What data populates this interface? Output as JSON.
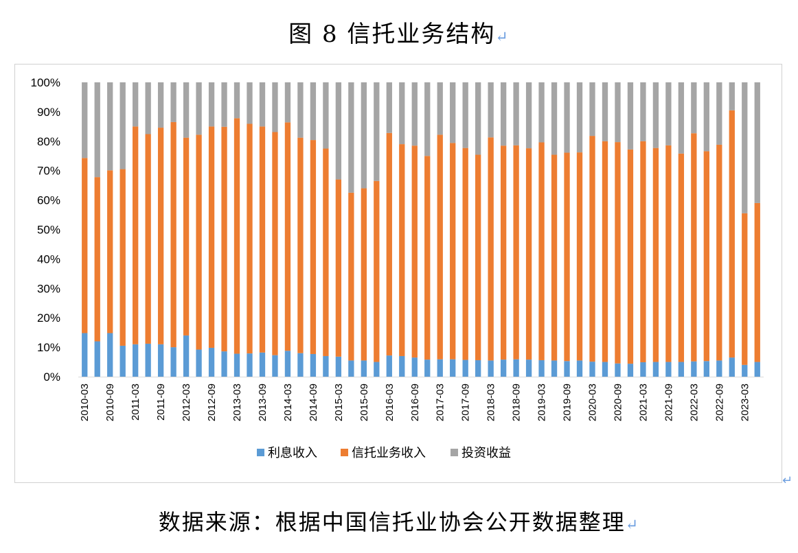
{
  "figure": {
    "title": "图 8  信托业务结构",
    "title_mark": "↵",
    "source": "数据来源：根据中国信托业协会公开数据整理",
    "source_mark": "↵",
    "para_mark": "↵"
  },
  "chart_data": {
    "type": "bar",
    "stacked": true,
    "percent": true,
    "ylim": [
      0,
      100
    ],
    "ytick_labels": [
      "0%",
      "10%",
      "20%",
      "30%",
      "40%",
      "50%",
      "60%",
      "70%",
      "80%",
      "90%",
      "100%"
    ],
    "xtick_labels": [
      "2010-03",
      "2010-09",
      "2011-03",
      "2011-09",
      "2012-03",
      "2012-09",
      "2013-03",
      "2013-09",
      "2014-03",
      "2014-09",
      "2015-03",
      "2015-09",
      "2016-03",
      "2016-09",
      "2017-03",
      "2017-09",
      "2018-03",
      "2018-09",
      "2019-03",
      "2019-09",
      "2020-03",
      "2020-09",
      "2021-03",
      "2021-09",
      "2022-03",
      "2022-09",
      "2023-03"
    ],
    "legend_position": "bottom",
    "grid": false,
    "series": [
      {
        "name": "利息收入",
        "color": "#5b9bd5",
        "values": [
          14.8,
          12.0,
          14.8,
          10.5,
          11.0,
          11.2,
          11.0,
          10.0,
          14.0,
          9.2,
          9.8,
          8.6,
          7.8,
          7.9,
          8.2,
          7.3,
          8.8,
          8.0,
          7.7,
          7.0,
          6.8,
          5.5,
          5.5,
          5.0,
          7.2,
          7.0,
          6.5,
          5.8,
          5.9,
          5.9,
          5.7,
          5.6,
          5.5,
          5.8,
          5.9,
          5.8,
          5.6,
          5.5,
          5.3,
          5.5,
          5.1,
          5.0,
          4.5,
          4.4,
          4.9,
          5.0,
          5.0,
          5.0,
          5.2,
          5.3,
          5.5,
          6.5,
          4.0,
          5.0
        ]
      },
      {
        "name": "信托业务收入",
        "color": "#ed7d31",
        "values": [
          59.5,
          55.8,
          55.3,
          60.0,
          74.0,
          71.2,
          73.6,
          76.5,
          67.2,
          73.0,
          75.2,
          76.3,
          80.0,
          78.0,
          76.8,
          75.8,
          77.6,
          73.2,
          72.7,
          70.5,
          60.2,
          57.0,
          58.5,
          61.5,
          75.6,
          72.0,
          72.0,
          69.2,
          76.3,
          73.5,
          72.0,
          69.8,
          75.8,
          72.7,
          72.7,
          71.8,
          74.0,
          69.9,
          70.8,
          70.7,
          76.7,
          75.0,
          75.2,
          72.8,
          75.1,
          72.7,
          73.6,
          70.8,
          77.5,
          71.3,
          73.3,
          84.0,
          51.5,
          54.0
        ]
      },
      {
        "name": "投资收益",
        "color": "#a5a5a5",
        "values": [
          25.7,
          32.2,
          29.9,
          29.5,
          15.0,
          17.6,
          15.4,
          13.5,
          18.8,
          17.8,
          15.0,
          15.1,
          12.2,
          14.1,
          15.0,
          16.9,
          13.6,
          18.8,
          19.6,
          22.5,
          33.0,
          37.5,
          36.0,
          33.5,
          17.2,
          21.0,
          21.5,
          25.0,
          17.8,
          20.6,
          22.3,
          24.6,
          18.7,
          21.5,
          21.4,
          22.4,
          20.4,
          24.6,
          23.9,
          23.8,
          18.2,
          20.0,
          20.3,
          22.8,
          20.0,
          22.3,
          21.4,
          24.2,
          17.3,
          23.4,
          21.2,
          9.5,
          44.5,
          41.0
        ]
      }
    ]
  }
}
